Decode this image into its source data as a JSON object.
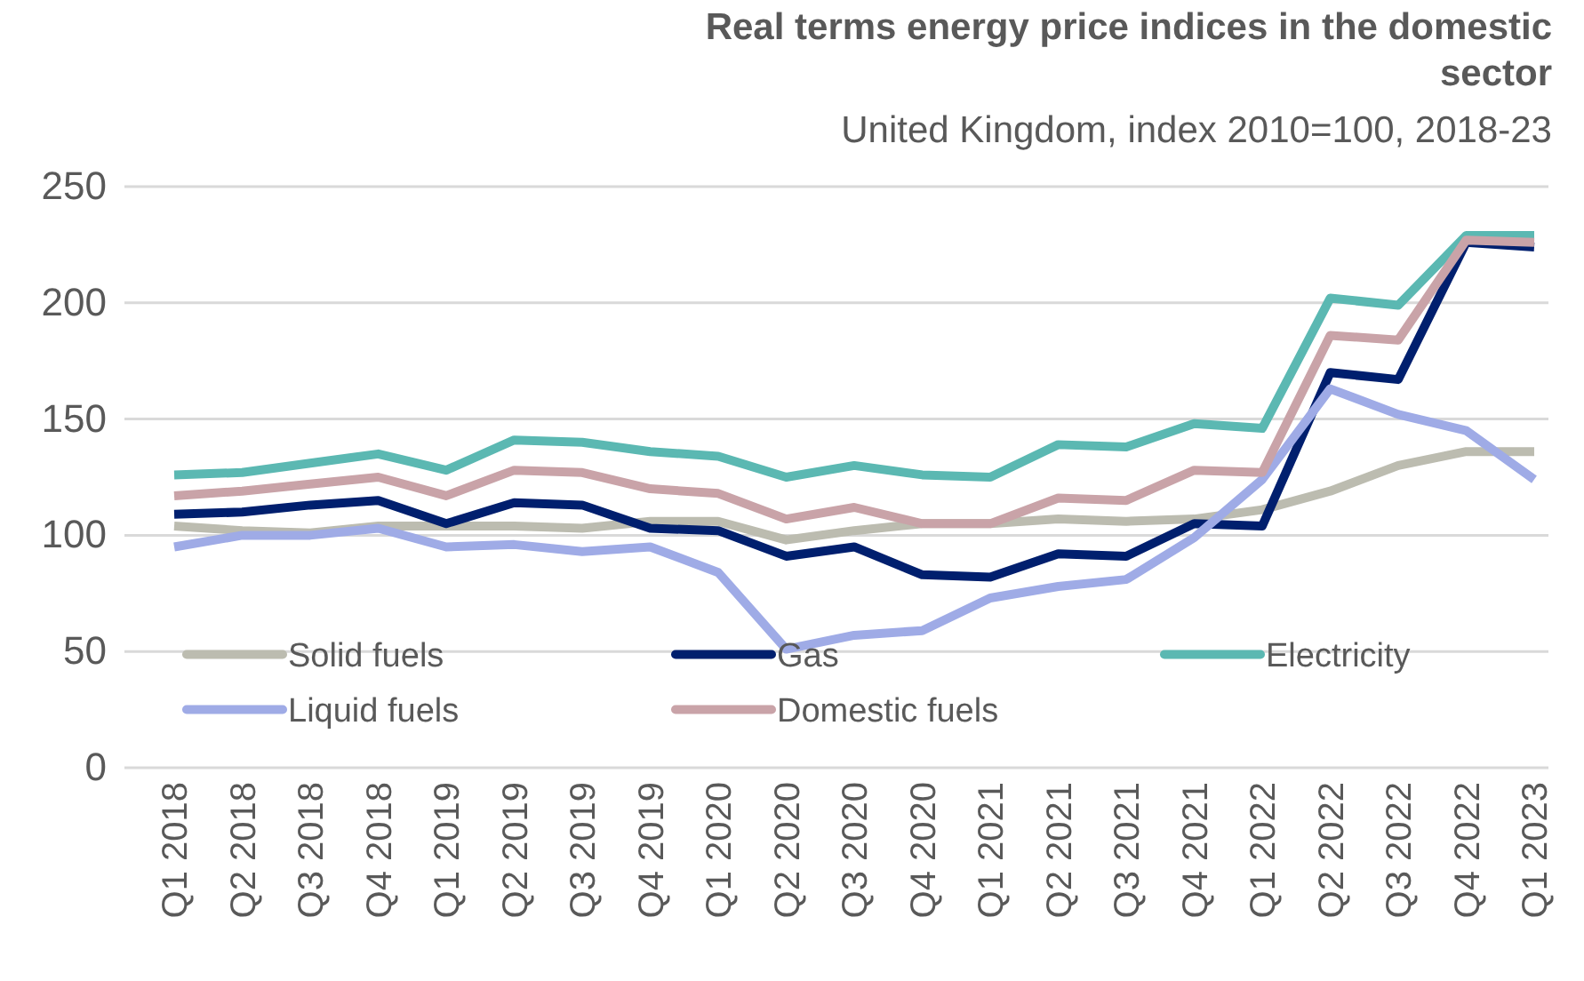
{
  "chart_data": {
    "type": "line",
    "title": "Real terms energy price indices in the domestic sector",
    "subtitle": "United Kingdom, index 2010=100, 2018-23",
    "categories": [
      "Q1 2018",
      "Q2 2018",
      "Q3 2018",
      "Q4 2018",
      "Q1 2019",
      "Q2 2019",
      "Q3 2019",
      "Q4 2019",
      "Q1 2020",
      "Q2 2020",
      "Q3 2020",
      "Q4 2020",
      "Q1 2021",
      "Q2 2021",
      "Q3 2021",
      "Q4 2021",
      "Q1 2022",
      "Q2 2022",
      "Q3 2022",
      "Q4 2022",
      "Q1 2023"
    ],
    "series": [
      {
        "name": "Solid fuels",
        "color": "#bcbcb0",
        "values": [
          104,
          102,
          101,
          104,
          104,
          104,
          103,
          106,
          106,
          98,
          102,
          105,
          105,
          107,
          106,
          107,
          111,
          119,
          130,
          136,
          136
        ]
      },
      {
        "name": "Gas",
        "color": "#001f6e",
        "values": [
          109,
          110,
          113,
          115,
          105,
          114,
          113,
          103,
          102,
          91,
          95,
          83,
          82,
          92,
          91,
          105,
          104,
          170,
          167,
          226,
          224
        ]
      },
      {
        "name": "Electricity",
        "color": "#5bb8b2",
        "values": [
          126,
          127,
          131,
          135,
          128,
          141,
          140,
          136,
          134,
          125,
          130,
          126,
          125,
          139,
          138,
          148,
          146,
          202,
          199,
          229,
          229
        ]
      },
      {
        "name": "Liquid fuels",
        "color": "#9fabe6",
        "values": [
          95,
          100,
          100,
          103,
          95,
          96,
          93,
          95,
          84,
          51,
          57,
          59,
          73,
          78,
          81,
          99,
          124,
          163,
          152,
          145,
          124
        ]
      },
      {
        "name": "Domestic fuels",
        "color": "#c9a3a8",
        "values": [
          117,
          119,
          122,
          125,
          117,
          128,
          127,
          120,
          118,
          107,
          112,
          105,
          105,
          116,
          115,
          128,
          127,
          186,
          184,
          227,
          226
        ]
      }
    ],
    "ylim": [
      0,
      250
    ],
    "yticks": [
      0,
      50,
      100,
      150,
      200,
      250
    ],
    "grid": "y",
    "legend": "bottom",
    "line_style": "solid",
    "marker": "none"
  }
}
